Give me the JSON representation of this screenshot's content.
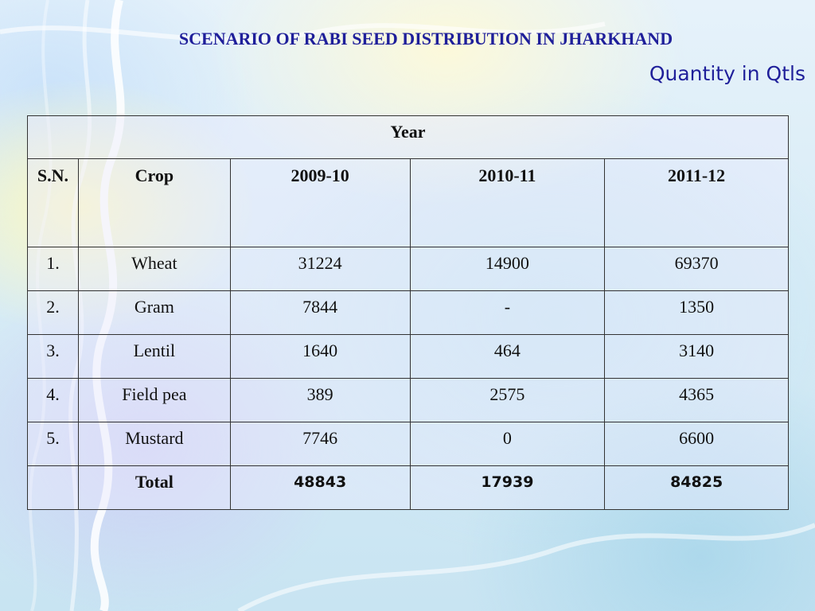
{
  "title": "SCENARIO OF RABI SEED DISTRIBUTION IN JHARKHAND",
  "subtitle": "Quantity in Qtls",
  "table": {
    "group_header": "Year",
    "headers": [
      "S.N.",
      "Crop",
      "2009-10",
      "2010-11",
      "2011-12"
    ],
    "rows": [
      [
        "1.",
        "Wheat",
        "31224",
        "14900",
        "69370"
      ],
      [
        "2.",
        "Gram",
        "7844",
        "-",
        "1350"
      ],
      [
        "3.",
        "Lentil",
        "1640",
        "464",
        "3140"
      ],
      [
        "4.",
        "Field pea",
        "389",
        "2575",
        "4365"
      ],
      [
        "5.",
        "Mustard",
        "7746",
        "0",
        "6600"
      ]
    ],
    "total": [
      "",
      "Total",
      "48843",
      "17939",
      "84825"
    ]
  },
  "colors": {
    "title": "#1f1f9a",
    "border": "#333333"
  }
}
